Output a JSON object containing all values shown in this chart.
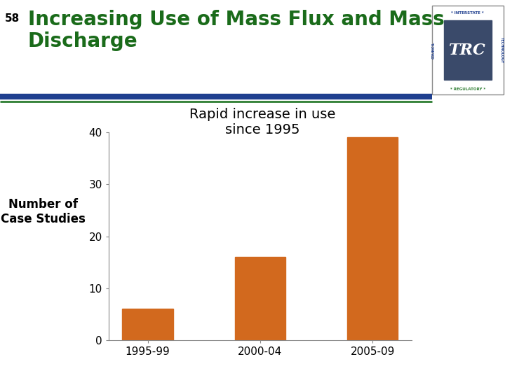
{
  "title_num": "58",
  "title_text": "Increasing Use of Mass Flux and Mass\nDischarge",
  "subtitle": "Rapid increase in use\nsince 1995",
  "categories": [
    "1995-99",
    "2000-04",
    "2005-09"
  ],
  "values": [
    6,
    16,
    39
  ],
  "bar_color": "#D2691E",
  "ylabel_text1": "Number of",
  "ylabel_text2": "Case Studies",
  "ylim": [
    0,
    40
  ],
  "yticks": [
    0,
    10,
    20,
    30,
    40
  ],
  "title_color": "#1A6B1A",
  "title_num_color": "#000000",
  "sep_line1_color": "#1F3F8F",
  "sep_line2_color": "#2E7D32",
  "background_color": "#FFFFFF",
  "subtitle_fontsize": 14,
  "ylabel_fontsize": 12,
  "title_fontsize": 20,
  "bar_width": 0.45,
  "chart_box": true
}
